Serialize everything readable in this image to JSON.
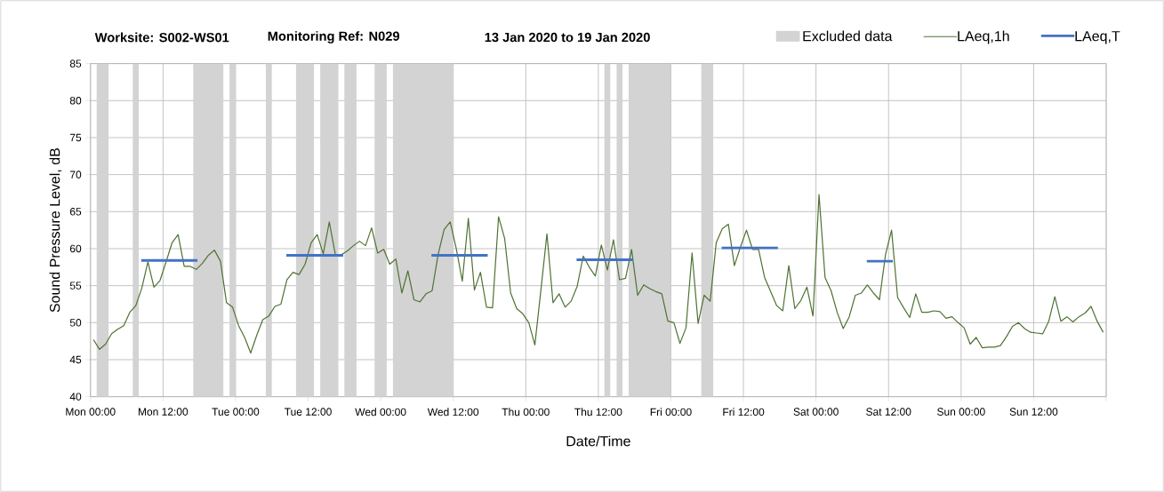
{
  "chart_data": {
    "type": "line",
    "title": "Worksite: S002-WS01",
    "subtitle": "Monitoring Ref: N029",
    "annotations": [
      "13 Jan 2020 to 19 Jan 2020"
    ],
    "xlabel": "Date/Time",
    "ylabel": "Sound Pressure Level, dB",
    "xlim": [
      "2020-01-13T00:00",
      "2020-01-20T00:00"
    ],
    "ylim": [
      40,
      85
    ],
    "yticks": [
      40,
      45,
      50,
      55,
      60,
      65,
      70,
      75,
      80,
      85
    ],
    "xticks": [
      {
        "value": "2020-01-13T00:00",
        "label": "Mon 00:00"
      },
      {
        "value": "2020-01-13T12:00",
        "label": "Mon 12:00"
      },
      {
        "value": "2020-01-14T00:00",
        "label": "Tue 00:00"
      },
      {
        "value": "2020-01-14T12:00",
        "label": "Tue 12:00"
      },
      {
        "value": "2020-01-15T00:00",
        "label": "Wed 00:00"
      },
      {
        "value": "2020-01-15T12:00",
        "label": "Wed 12:00"
      },
      {
        "value": "2020-01-16T00:00",
        "label": "Thu 00:00"
      },
      {
        "value": "2020-01-16T12:00",
        "label": "Thu 12:00"
      },
      {
        "value": "2020-01-17T00:00",
        "label": "Fri 00:00"
      },
      {
        "value": "2020-01-17T12:00",
        "label": "Fri 12:00"
      },
      {
        "value": "2020-01-18T00:00",
        "label": "Sat 00:00"
      },
      {
        "value": "2020-01-18T12:00",
        "label": "Sat 12:00"
      },
      {
        "value": "2020-01-19T00:00",
        "label": "Sun 00:00"
      },
      {
        "value": "2020-01-19T12:00",
        "label": "Sun 12:00"
      },
      {
        "value": "2020-01-20T00:00",
        "label": null
      }
    ],
    "grid": true,
    "legend": "top right",
    "bands": [
      {
        "axis": "x",
        "from": "2020-01-13T01:00",
        "to": "2020-01-13T03:00",
        "color": "#d3d3d3",
        "label": "Excluded data"
      },
      {
        "axis": "x",
        "from": "2020-01-13T07:00",
        "to": "2020-01-13T08:00",
        "color": "#d3d3d3"
      },
      {
        "axis": "x",
        "from": "2020-01-13T17:00",
        "to": "2020-01-13T22:00",
        "color": "#d3d3d3"
      },
      {
        "axis": "x",
        "from": "2020-01-13T23:00",
        "to": "2020-01-14T00:00",
        "color": "#d3d3d3"
      },
      {
        "axis": "x",
        "from": "2020-01-14T05:00",
        "to": "2020-01-14T06:00",
        "color": "#d3d3d3"
      },
      {
        "axis": "x",
        "from": "2020-01-14T10:00",
        "to": "2020-01-14T13:00",
        "color": "#d3d3d3"
      },
      {
        "axis": "x",
        "from": "2020-01-14T14:00",
        "to": "2020-01-14T17:00",
        "color": "#d3d3d3"
      },
      {
        "axis": "x",
        "from": "2020-01-14T18:00",
        "to": "2020-01-14T20:00",
        "color": "#d3d3d3"
      },
      {
        "axis": "x",
        "from": "2020-01-14T23:00",
        "to": "2020-01-15T01:00",
        "color": "#d3d3d3"
      },
      {
        "axis": "x",
        "from": "2020-01-15T02:00",
        "to": "2020-01-15T12:00",
        "color": "#d3d3d3"
      },
      {
        "axis": "x",
        "from": "2020-01-16T13:00",
        "to": "2020-01-16T14:00",
        "color": "#d3d3d3"
      },
      {
        "axis": "x",
        "from": "2020-01-16T15:00",
        "to": "2020-01-16T16:00",
        "color": "#d3d3d3"
      },
      {
        "axis": "x",
        "from": "2020-01-16T17:00",
        "to": "2020-01-17T00:00",
        "color": "#d3d3d3"
      },
      {
        "axis": "x",
        "from": "2020-01-17T05:00",
        "to": "2020-01-17T07:00",
        "color": "#d3d3d3"
      }
    ],
    "series": [
      {
        "name": "LAeq,1h",
        "color": "#4f7232",
        "x": [
          "2020-01-13T00:30",
          "2020-01-13T01:30",
          "2020-01-13T02:30",
          "2020-01-13T03:30",
          "2020-01-13T04:30",
          "2020-01-13T05:30",
          "2020-01-13T06:30",
          "2020-01-13T07:30",
          "2020-01-13T08:30",
          "2020-01-13T09:30",
          "2020-01-13T10:30",
          "2020-01-13T11:30",
          "2020-01-13T12:30",
          "2020-01-13T13:30",
          "2020-01-13T14:30",
          "2020-01-13T15:30",
          "2020-01-13T16:30",
          "2020-01-13T17:30",
          "2020-01-13T18:30",
          "2020-01-13T19:30",
          "2020-01-13T20:30",
          "2020-01-13T21:30",
          "2020-01-13T22:30",
          "2020-01-13T23:30",
          "2020-01-14T00:30",
          "2020-01-14T01:30",
          "2020-01-14T02:30",
          "2020-01-14T03:30",
          "2020-01-14T04:30",
          "2020-01-14T05:30",
          "2020-01-14T06:30",
          "2020-01-14T07:30",
          "2020-01-14T08:30",
          "2020-01-14T09:30",
          "2020-01-14T10:30",
          "2020-01-14T11:30",
          "2020-01-14T12:30",
          "2020-01-14T13:30",
          "2020-01-14T14:30",
          "2020-01-14T15:30",
          "2020-01-14T16:30",
          "2020-01-14T17:30",
          "2020-01-14T18:30",
          "2020-01-14T19:30",
          "2020-01-14T20:30",
          "2020-01-14T21:30",
          "2020-01-14T22:30",
          "2020-01-14T23:30",
          "2020-01-15T00:30",
          "2020-01-15T01:30",
          "2020-01-15T02:30",
          "2020-01-15T03:30",
          "2020-01-15T04:30",
          "2020-01-15T05:30",
          "2020-01-15T06:30",
          "2020-01-15T07:30",
          "2020-01-15T08:30",
          "2020-01-15T09:30",
          "2020-01-15T10:30",
          "2020-01-15T11:30",
          "2020-01-15T12:30",
          "2020-01-15T13:30",
          "2020-01-15T14:30",
          "2020-01-15T15:30",
          "2020-01-15T16:30",
          "2020-01-15T17:30",
          "2020-01-15T18:30",
          "2020-01-15T19:30",
          "2020-01-15T20:30",
          "2020-01-15T21:30",
          "2020-01-15T22:30",
          "2020-01-15T23:30",
          "2020-01-16T00:30",
          "2020-01-16T01:30",
          "2020-01-16T02:30",
          "2020-01-16T03:30",
          "2020-01-16T04:30",
          "2020-01-16T05:30",
          "2020-01-16T06:30",
          "2020-01-16T07:30",
          "2020-01-16T08:30",
          "2020-01-16T09:30",
          "2020-01-16T10:30",
          "2020-01-16T11:30",
          "2020-01-16T12:30",
          "2020-01-16T13:30",
          "2020-01-16T14:30",
          "2020-01-16T15:30",
          "2020-01-16T16:30",
          "2020-01-16T17:30",
          "2020-01-16T18:30",
          "2020-01-16T19:30",
          "2020-01-16T20:30",
          "2020-01-16T21:30",
          "2020-01-16T22:30",
          "2020-01-16T23:30",
          "2020-01-17T00:30",
          "2020-01-17T01:30",
          "2020-01-17T02:30",
          "2020-01-17T03:30",
          "2020-01-17T04:30",
          "2020-01-17T05:30",
          "2020-01-17T06:30",
          "2020-01-17T07:30",
          "2020-01-17T08:30",
          "2020-01-17T09:30",
          "2020-01-17T10:30",
          "2020-01-17T11:30",
          "2020-01-17T12:30",
          "2020-01-17T13:30",
          "2020-01-17T14:30",
          "2020-01-17T15:30",
          "2020-01-17T16:30",
          "2020-01-17T17:30",
          "2020-01-17T18:30",
          "2020-01-17T19:30",
          "2020-01-17T20:30",
          "2020-01-17T21:30",
          "2020-01-17T22:30",
          "2020-01-17T23:30",
          "2020-01-18T00:30",
          "2020-01-18T01:30",
          "2020-01-18T02:30",
          "2020-01-18T03:30",
          "2020-01-18T04:30",
          "2020-01-18T05:30",
          "2020-01-18T06:30",
          "2020-01-18T07:30",
          "2020-01-18T08:30",
          "2020-01-18T09:30",
          "2020-01-18T10:30",
          "2020-01-18T11:30",
          "2020-01-18T12:30",
          "2020-01-18T13:30",
          "2020-01-18T14:30",
          "2020-01-18T15:30",
          "2020-01-18T16:30",
          "2020-01-18T17:30",
          "2020-01-18T18:30",
          "2020-01-18T19:30",
          "2020-01-18T20:30",
          "2020-01-18T21:30",
          "2020-01-18T22:30",
          "2020-01-18T23:30",
          "2020-01-19T00:30",
          "2020-01-19T01:30",
          "2020-01-19T02:30",
          "2020-01-19T03:30",
          "2020-01-19T04:30",
          "2020-01-19T05:30",
          "2020-01-19T06:30",
          "2020-01-19T07:30",
          "2020-01-19T08:30",
          "2020-01-19T09:30",
          "2020-01-19T10:30",
          "2020-01-19T11:30",
          "2020-01-19T12:30",
          "2020-01-19T13:30",
          "2020-01-19T14:30",
          "2020-01-19T15:30",
          "2020-01-19T16:30",
          "2020-01-19T17:30",
          "2020-01-19T18:30",
          "2020-01-19T19:30",
          "2020-01-19T20:30",
          "2020-01-19T21:30",
          "2020-01-19T22:30",
          "2020-01-19T23:30"
        ],
        "values": [
          47.7,
          46.4,
          47.1,
          48.5,
          49.1,
          49.6,
          51.4,
          52.3,
          54.7,
          58.2,
          54.8,
          55.7,
          58.2,
          60.8,
          61.9,
          57.6,
          57.6,
          57.2,
          58.0,
          59.1,
          59.8,
          58.3,
          52.7,
          52.1,
          49.6,
          48.0,
          45.9,
          48.3,
          50.4,
          50.9,
          52.2,
          52.5,
          55.8,
          56.8,
          56.5,
          57.9,
          60.8,
          61.9,
          59.3,
          63.6,
          59.2,
          59.2,
          59.7,
          60.4,
          61.0,
          60.4,
          62.8,
          59.4,
          59.9,
          57.9,
          58.6,
          54.0,
          57.0,
          53.1,
          52.8,
          53.9,
          54.3,
          59.2,
          62.6,
          63.6,
          60.0,
          55.6,
          64.1,
          54.4,
          56.8,
          52.1,
          52.0,
          64.3,
          61.4,
          54.0,
          51.9,
          51.2,
          50.0,
          47.0,
          54.4,
          62.0,
          52.7,
          53.9,
          52.1,
          52.9,
          54.9,
          59.0,
          57.5,
          56.3,
          60.5,
          57.1,
          61.2,
          55.8,
          56.0,
          59.9,
          53.7,
          55.1,
          54.6,
          54.2,
          53.9,
          50.2,
          50.0,
          47.2,
          49.3,
          59.4,
          49.9,
          53.7,
          52.9,
          60.8,
          62.7,
          63.3,
          57.7,
          60.2,
          62.5,
          59.9,
          59.9,
          56.1,
          54.2,
          52.3,
          51.6,
          57.7,
          51.9,
          53.0,
          54.8,
          50.9,
          67.3,
          56.1,
          54.3,
          51.4,
          49.2,
          50.8,
          53.7,
          54.0,
          55.1,
          54.0,
          53.1,
          59.2,
          62.5,
          53.4,
          52.0,
          50.7,
          53.9,
          51.4,
          51.4,
          51.6,
          51.5,
          50.6,
          50.8,
          50.0,
          49.3,
          47.1,
          48.0,
          46.6,
          46.7,
          46.7,
          46.9,
          48.1,
          49.5,
          50.0,
          49.2,
          48.7,
          48.6,
          48.5,
          50.2,
          53.5,
          50.2,
          50.8,
          50.1,
          50.8,
          51.3,
          52.2,
          50.2,
          48.7
        ]
      },
      {
        "name": "LAeq,T",
        "color": "#4472c4",
        "x": [
          "2020-01-13T08:24",
          "2020-01-13T17:42",
          null,
          "2020-01-14T08:24",
          "2020-01-14T17:48",
          null,
          "2020-01-15T08:24",
          "2020-01-15T17:42",
          null,
          "2020-01-16T08:24",
          "2020-01-16T17:42",
          null,
          "2020-01-17T08:24",
          "2020-01-17T17:42",
          null,
          "2020-01-18T08:24",
          "2020-01-18T12:42"
        ],
        "values": [
          58.4,
          58.4,
          null,
          59.1,
          59.1,
          null,
          59.1,
          59.1,
          null,
          58.5,
          58.5,
          null,
          60.1,
          60.1,
          null,
          58.3,
          58.3
        ]
      }
    ]
  }
}
